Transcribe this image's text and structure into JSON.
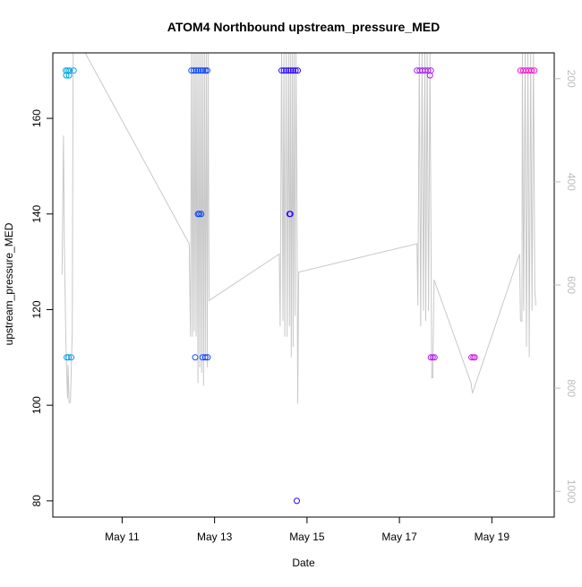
{
  "chart_data": {
    "type": "scatter",
    "title": "ATOM4 Northbound upstream_pressure_MED",
    "xlabel": "Date",
    "ylabel": "upstream_pressure_MED",
    "x_ticks": [
      "May 11",
      "May 13",
      "May 15",
      "May 17",
      "May 19"
    ],
    "x_tick_values": [
      11,
      13,
      15,
      17,
      19
    ],
    "xlim": [
      9.5,
      20.35
    ],
    "ylim": [
      76.6,
      173.7
    ],
    "y_ticks": [
      80,
      100,
      120,
      140,
      160
    ],
    "right_axis": {
      "ylim": [
        1050,
        150
      ],
      "ticks": [
        200,
        400,
        600,
        800,
        1000
      ],
      "color": "#bdbdbd"
    },
    "grid": false,
    "legend": "none",
    "line_color": "#c8c8c8",
    "point_color_gradient": [
      "#00a8e0",
      "#0050ff",
      "#2f00ff",
      "#a020f0",
      "#ff10d0"
    ],
    "points": [
      {
        "x": 9.78,
        "y": 170
      },
      {
        "x": 9.82,
        "y": 170
      },
      {
        "x": 9.86,
        "y": 170
      },
      {
        "x": 9.95,
        "y": 170
      },
      {
        "x": 9.79,
        "y": 169
      },
      {
        "x": 9.85,
        "y": 169
      },
      {
        "x": 9.8,
        "y": 110
      },
      {
        "x": 9.84,
        "y": 110
      },
      {
        "x": 9.9,
        "y": 110
      },
      {
        "x": 12.5,
        "y": 170
      },
      {
        "x": 12.55,
        "y": 170
      },
      {
        "x": 12.6,
        "y": 170
      },
      {
        "x": 12.65,
        "y": 170
      },
      {
        "x": 12.7,
        "y": 170
      },
      {
        "x": 12.75,
        "y": 170
      },
      {
        "x": 12.8,
        "y": 170
      },
      {
        "x": 12.84,
        "y": 170
      },
      {
        "x": 12.64,
        "y": 140
      },
      {
        "x": 12.67,
        "y": 140
      },
      {
        "x": 12.71,
        "y": 140
      },
      {
        "x": 12.58,
        "y": 110
      },
      {
        "x": 12.74,
        "y": 110
      },
      {
        "x": 12.8,
        "y": 110
      },
      {
        "x": 12.85,
        "y": 110
      },
      {
        "x": 14.45,
        "y": 170
      },
      {
        "x": 14.5,
        "y": 170
      },
      {
        "x": 14.55,
        "y": 170
      },
      {
        "x": 14.6,
        "y": 170
      },
      {
        "x": 14.65,
        "y": 170
      },
      {
        "x": 14.7,
        "y": 170
      },
      {
        "x": 14.75,
        "y": 170
      },
      {
        "x": 14.8,
        "y": 170
      },
      {
        "x": 14.62,
        "y": 140
      },
      {
        "x": 14.64,
        "y": 140
      },
      {
        "x": 14.78,
        "y": 80
      },
      {
        "x": 17.38,
        "y": 170
      },
      {
        "x": 17.44,
        "y": 170
      },
      {
        "x": 17.5,
        "y": 170
      },
      {
        "x": 17.56,
        "y": 170
      },
      {
        "x": 17.62,
        "y": 170
      },
      {
        "x": 17.68,
        "y": 170
      },
      {
        "x": 17.66,
        "y": 169
      },
      {
        "x": 17.68,
        "y": 110
      },
      {
        "x": 17.72,
        "y": 110
      },
      {
        "x": 17.76,
        "y": 110
      },
      {
        "x": 18.56,
        "y": 110
      },
      {
        "x": 18.6,
        "y": 110
      },
      {
        "x": 18.63,
        "y": 110
      },
      {
        "x": 19.62,
        "y": 170
      },
      {
        "x": 19.68,
        "y": 170
      },
      {
        "x": 19.74,
        "y": 170
      },
      {
        "x": 19.8,
        "y": 170
      },
      {
        "x": 19.86,
        "y": 170
      },
      {
        "x": 19.92,
        "y": 170
      }
    ],
    "line_series_right_axis": [
      [
        9.7,
        580
      ],
      [
        9.73,
        310
      ],
      [
        9.75,
        530
      ],
      [
        9.78,
        700
      ],
      [
        9.8,
        770
      ],
      [
        9.82,
        820
      ],
      [
        9.83,
        755
      ],
      [
        9.85,
        828
      ],
      [
        9.88,
        828
      ],
      [
        9.92,
        690
      ],
      [
        9.94,
        150
      ],
      [
        10.1,
        150
      ],
      [
        10.2,
        150
      ],
      [
        12.45,
        520
      ],
      [
        12.48,
        700
      ],
      [
        12.5,
        150
      ],
      [
        12.52,
        700
      ],
      [
        12.54,
        150
      ],
      [
        12.56,
        690
      ],
      [
        12.58,
        150
      ],
      [
        12.6,
        700
      ],
      [
        12.62,
        150
      ],
      [
        12.64,
        790
      ],
      [
        12.66,
        150
      ],
      [
        12.68,
        760
      ],
      [
        12.7,
        150
      ],
      [
        12.72,
        770
      ],
      [
        12.74,
        150
      ],
      [
        12.76,
        795
      ],
      [
        12.78,
        150
      ],
      [
        12.8,
        740
      ],
      [
        12.82,
        150
      ],
      [
        12.84,
        760
      ],
      [
        12.86,
        150
      ],
      [
        12.88,
        630
      ],
      [
        14.4,
        540
      ],
      [
        14.42,
        680
      ],
      [
        14.45,
        150
      ],
      [
        14.48,
        670
      ],
      [
        14.5,
        150
      ],
      [
        14.52,
        700
      ],
      [
        14.55,
        150
      ],
      [
        14.57,
        700
      ],
      [
        14.6,
        150
      ],
      [
        14.62,
        680
      ],
      [
        14.64,
        150
      ],
      [
        14.66,
        740
      ],
      [
        14.68,
        150
      ],
      [
        14.7,
        720
      ],
      [
        14.72,
        150
      ],
      [
        14.74,
        660
      ],
      [
        14.76,
        150
      ],
      [
        14.78,
        390
      ],
      [
        14.8,
        830
      ],
      [
        14.82,
        575
      ],
      [
        17.38,
        520
      ],
      [
        17.4,
        640
      ],
      [
        17.43,
        150
      ],
      [
        17.46,
        680
      ],
      [
        17.49,
        150
      ],
      [
        17.52,
        650
      ],
      [
        17.55,
        150
      ],
      [
        17.57,
        670
      ],
      [
        17.6,
        150
      ],
      [
        17.63,
        650
      ],
      [
        17.66,
        150
      ],
      [
        17.7,
        780
      ],
      [
        17.72,
        780
      ],
      [
        17.75,
        590
      ],
      [
        18.55,
        790
      ],
      [
        18.58,
        810
      ],
      [
        19.6,
        540
      ],
      [
        19.62,
        670
      ],
      [
        19.65,
        670
      ],
      [
        19.66,
        150
      ],
      [
        19.69,
        650
      ],
      [
        19.72,
        150
      ],
      [
        19.75,
        720
      ],
      [
        19.78,
        150
      ],
      [
        19.81,
        740
      ],
      [
        19.84,
        150
      ],
      [
        19.87,
        650
      ],
      [
        19.9,
        150
      ],
      [
        19.93,
        610
      ],
      [
        19.95,
        640
      ]
    ]
  }
}
